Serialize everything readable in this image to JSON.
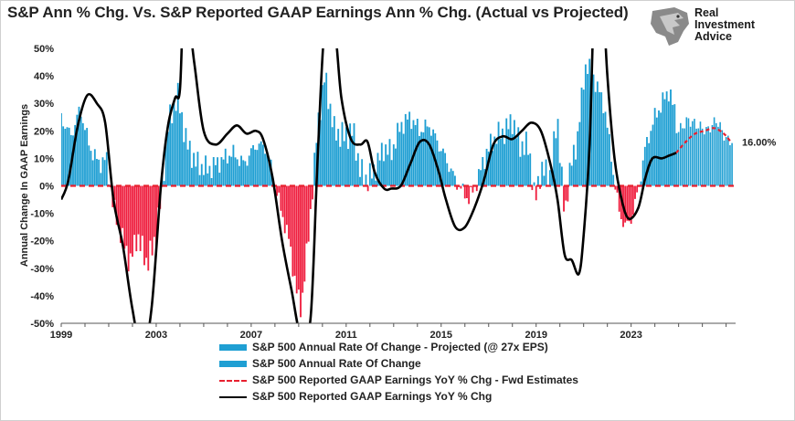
{
  "title": "S&P Ann % Chg. Vs. S&P Reported GAAP Earnings Ann % Chg. (Actual vs Projected)",
  "logo": {
    "line1": "Real",
    "line2": "Investment",
    "line3": "Advice",
    "icon": "eagle-head-icon"
  },
  "colors": {
    "bar_pos": "#1f9fd3",
    "bar_neg": "#ef1f3f",
    "bar_proj": "#1f9fd3",
    "line": "#000000",
    "dash": "#e8202f"
  },
  "legend": [
    {
      "label": "S&P 500 Annual Rate Of Change - Projected (@ 27x EPS)",
      "style": "bar-proj"
    },
    {
      "label": "S&P 500 Annual Rate Of Change",
      "style": "bar"
    },
    {
      "label": "S&P 500 Reported GAAP Earnings YoY % Chg - Fwd Estimates",
      "style": "dash"
    },
    {
      "label": "S&P 500 Reported GAAP Earnings YoY  % Chg",
      "style": "line"
    }
  ],
  "chart_data": {
    "type": "bar",
    "ylabel": "Annual Change In GAAP Earnings",
    "ylim": [
      -50,
      50
    ],
    "yticks": [
      "50%",
      "40%",
      "30%",
      "20%",
      "10%",
      "0%",
      "-10%",
      "-20%",
      "-30%",
      "-40%",
      "-50%"
    ],
    "xlim": [
      1999,
      2027.4
    ],
    "xticks": [
      "1999",
      "2003",
      "2007",
      "2011",
      "2015",
      "2019",
      "2023"
    ],
    "end_label": "16.00%",
    "annual_change_anchors": [
      [
        1999.0,
        25
      ],
      [
        1999.4,
        18
      ],
      [
        1999.8,
        28
      ],
      [
        2000.2,
        14
      ],
      [
        2000.6,
        8
      ],
      [
        2000.9,
        10
      ],
      [
        2001.2,
        -8
      ],
      [
        2001.6,
        -20
      ],
      [
        2001.9,
        -28
      ],
      [
        2002.2,
        -18
      ],
      [
        2002.6,
        -28
      ],
      [
        2002.9,
        -22
      ],
      [
        2003.2,
        -5
      ],
      [
        2003.5,
        22
      ],
      [
        2003.9,
        33
      ],
      [
        2004.3,
        15
      ],
      [
        2004.7,
        8
      ],
      [
        2005.2,
        6
      ],
      [
        2005.7,
        9
      ],
      [
        2006.2,
        12
      ],
      [
        2006.7,
        8
      ],
      [
        2007.2,
        15
      ],
      [
        2007.6,
        14
      ],
      [
        2007.9,
        5
      ],
      [
        2008.2,
        -7
      ],
      [
        2008.6,
        -20
      ],
      [
        2008.9,
        -38
      ],
      [
        2009.1,
        -45
      ],
      [
        2009.4,
        -20
      ],
      [
        2009.8,
        22
      ],
      [
        2010.1,
        40
      ],
      [
        2010.5,
        20
      ],
      [
        2010.9,
        18
      ],
      [
        2011.3,
        20
      ],
      [
        2011.6,
        5
      ],
      [
        2011.9,
        2
      ],
      [
        2012.2,
        6
      ],
      [
        2012.6,
        14
      ],
      [
        2012.9,
        12
      ],
      [
        2013.3,
        22
      ],
      [
        2013.7,
        25
      ],
      [
        2014.1,
        20
      ],
      [
        2014.5,
        22
      ],
      [
        2014.9,
        15
      ],
      [
        2015.2,
        10
      ],
      [
        2015.6,
        2
      ],
      [
        2015.9,
        -2
      ],
      [
        2016.2,
        -5
      ],
      [
        2016.6,
        4
      ],
      [
        2016.9,
        12
      ],
      [
        2017.3,
        18
      ],
      [
        2017.7,
        20
      ],
      [
        2018.0,
        24
      ],
      [
        2018.3,
        15
      ],
      [
        2018.7,
        14
      ],
      [
        2018.95,
        -6
      ],
      [
        2019.2,
        6
      ],
      [
        2019.6,
        4
      ],
      [
        2019.9,
        25
      ],
      [
        2020.2,
        -12
      ],
      [
        2020.4,
        5
      ],
      [
        2020.7,
        15
      ],
      [
        2021.1,
        45
      ],
      [
        2021.5,
        38
      ],
      [
        2021.9,
        28
      ],
      [
        2022.2,
        8
      ],
      [
        2022.5,
        -10
      ],
      [
        2022.8,
        -15
      ],
      [
        2023.0,
        -12
      ],
      [
        2023.3,
        -2
      ],
      [
        2023.6,
        14
      ],
      [
        2024.0,
        25
      ],
      [
        2024.3,
        30
      ],
      [
        2024.6,
        35
      ],
      [
        2024.8,
        28
      ],
      [
        2024.95,
        22
      ]
    ],
    "annual_change_projected_anchors": [
      [
        2025.0,
        20
      ],
      [
        2025.4,
        24
      ],
      [
        2025.8,
        22
      ],
      [
        2026.2,
        20
      ],
      [
        2026.6,
        24
      ],
      [
        2027.0,
        17
      ],
      [
        2027.3,
        16
      ]
    ],
    "gaap_eps_yoy": [
      [
        1999.0,
        -5
      ],
      [
        1999.3,
        2
      ],
      [
        1999.7,
        22
      ],
      [
        2000.1,
        33
      ],
      [
        2000.5,
        30
      ],
      [
        2000.85,
        23
      ],
      [
        2001.2,
        -5
      ],
      [
        2001.6,
        -22
      ],
      [
        2002.0,
        -45
      ],
      [
        2002.4,
        -60
      ],
      [
        2002.8,
        -45
      ],
      [
        2003.2,
        0
      ],
      [
        2003.5,
        22
      ],
      [
        2003.8,
        32
      ],
      [
        2004.0,
        35
      ],
      [
        2004.2,
        70
      ],
      [
        2004.6,
        45
      ],
      [
        2005.0,
        20
      ],
      [
        2005.5,
        15
      ],
      [
        2006.0,
        19
      ],
      [
        2006.4,
        22
      ],
      [
        2006.8,
        19
      ],
      [
        2007.2,
        20
      ],
      [
        2007.5,
        17
      ],
      [
        2007.9,
        3
      ],
      [
        2008.3,
        -20
      ],
      [
        2008.7,
        -38
      ],
      [
        2009.1,
        -55
      ],
      [
        2009.5,
        -48
      ],
      [
        2009.8,
        10
      ],
      [
        2010.1,
        58
      ],
      [
        2010.5,
        58
      ],
      [
        2010.8,
        32
      ],
      [
        2011.2,
        17
      ],
      [
        2011.6,
        15
      ],
      [
        2011.9,
        16
      ],
      [
        2012.2,
        5
      ],
      [
        2012.6,
        -1
      ],
      [
        2012.9,
        -1
      ],
      [
        2013.3,
        0
      ],
      [
        2013.7,
        8
      ],
      [
        2014.1,
        16
      ],
      [
        2014.5,
        15
      ],
      [
        2014.9,
        5
      ],
      [
        2015.2,
        -5
      ],
      [
        2015.6,
        -15
      ],
      [
        2016.0,
        -15
      ],
      [
        2016.4,
        -8
      ],
      [
        2016.8,
        2
      ],
      [
        2017.2,
        15
      ],
      [
        2017.6,
        18
      ],
      [
        2018.0,
        17
      ],
      [
        2018.4,
        20
      ],
      [
        2018.8,
        23
      ],
      [
        2019.2,
        20
      ],
      [
        2019.6,
        8
      ],
      [
        2019.9,
        -5
      ],
      [
        2020.2,
        -25
      ],
      [
        2020.5,
        -27
      ],
      [
        2020.8,
        -32
      ],
      [
        2021.0,
        -18
      ],
      [
        2021.25,
        15
      ],
      [
        2021.5,
        80
      ],
      [
        2021.8,
        70
      ],
      [
        2022.0,
        40
      ],
      [
        2022.3,
        10
      ],
      [
        2022.6,
        -5
      ],
      [
        2022.9,
        -12
      ],
      [
        2023.3,
        -8
      ],
      [
        2023.6,
        3
      ],
      [
        2023.9,
        10
      ],
      [
        2024.3,
        10
      ],
      [
        2024.6,
        11
      ],
      [
        2024.9,
        12
      ]
    ],
    "gaap_eps_yoy_fwd": [
      [
        2024.9,
        12
      ],
      [
        2025.3,
        16
      ],
      [
        2025.7,
        19
      ],
      [
        2026.1,
        20
      ],
      [
        2026.5,
        21
      ],
      [
        2026.9,
        19
      ],
      [
        2027.2,
        16
      ]
    ]
  }
}
